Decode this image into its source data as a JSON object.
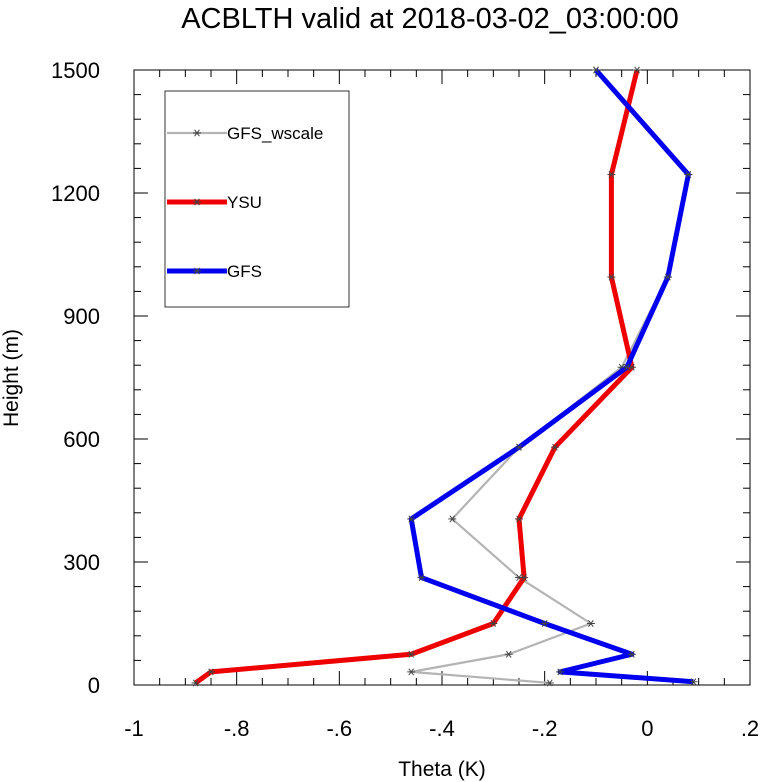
{
  "chart_data": {
    "type": "line",
    "title": "ACBLTH valid at 2018-03-02_03:00:00",
    "xlabel": "Theta (K)",
    "ylabel": "Height (m)",
    "xlim": [
      -1.0,
      0.2
    ],
    "ylim": [
      0,
      1500
    ],
    "xticks": [
      -1.0,
      -0.8,
      -0.6,
      -0.4,
      -0.2,
      0.0,
      0.2
    ],
    "xtick_labels": [
      "-1",
      "-.8",
      "-.6",
      "-.4",
      "-.2",
      "0",
      ".2"
    ],
    "yticks": [
      0,
      300,
      600,
      900,
      1200,
      1500
    ],
    "ytick_labels": [
      "0",
      "300",
      "600",
      "900",
      "1200",
      "1500"
    ],
    "grid": false,
    "legend_position": "top-left",
    "series": [
      {
        "name": "GFS_wscale",
        "color": "#b4b4b4",
        "marker": "asterisk",
        "line_weight": "thin",
        "points": [
          [
            -0.19,
            5
          ],
          [
            -0.46,
            32
          ],
          [
            -0.27,
            75
          ],
          [
            -0.11,
            150
          ],
          [
            -0.25,
            262
          ],
          [
            -0.38,
            405
          ],
          [
            -0.25,
            580
          ],
          [
            -0.05,
            775
          ],
          [
            0.04,
            995
          ],
          [
            0.08,
            1245
          ],
          [
            -0.1,
            1500
          ]
        ]
      },
      {
        "name": "YSU",
        "color": "#ee0000",
        "marker": "asterisk",
        "line_weight": "thick",
        "points": [
          [
            -0.88,
            5
          ],
          [
            -0.85,
            32
          ],
          [
            -0.46,
            75
          ],
          [
            -0.3,
            150
          ],
          [
            -0.24,
            262
          ],
          [
            -0.25,
            405
          ],
          [
            -0.18,
            580
          ],
          [
            -0.03,
            775
          ],
          [
            -0.07,
            995
          ],
          [
            -0.07,
            1245
          ],
          [
            -0.02,
            1500
          ]
        ]
      },
      {
        "name": "GFS",
        "color": "#0000ee",
        "marker": "asterisk",
        "line_weight": "thick",
        "points": [
          [
            0.09,
            8
          ],
          [
            -0.17,
            32
          ],
          [
            -0.03,
            75
          ],
          [
            -0.2,
            150
          ],
          [
            -0.44,
            262
          ],
          [
            -0.46,
            405
          ],
          [
            -0.25,
            580
          ],
          [
            -0.04,
            775
          ],
          [
            0.04,
            995
          ],
          [
            0.08,
            1245
          ],
          [
            -0.1,
            1500
          ]
        ]
      }
    ]
  }
}
